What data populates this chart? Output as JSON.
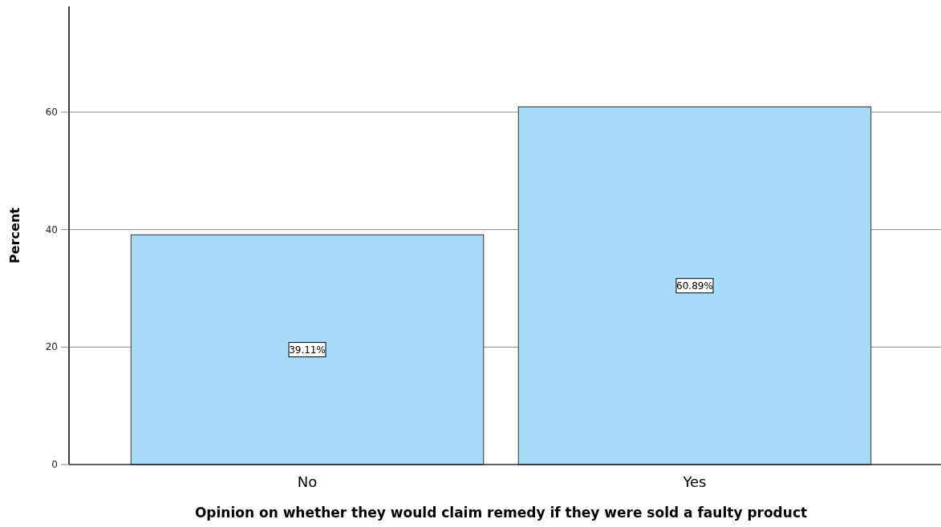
{
  "chart_data": {
    "type": "bar",
    "xlabel": "Opinion on whether they would claim remedy if they were sold a faulty product",
    "ylabel": "Percent",
    "categories": [
      "No",
      "Yes"
    ],
    "values": [
      39.11,
      60.89
    ],
    "value_labels": [
      "39.11%",
      "60.89%"
    ],
    "color": "#a6dcf7",
    "ylim": [
      0,
      78
    ],
    "yticks": [
      0,
      20,
      40,
      60
    ],
    "grid": "y"
  }
}
